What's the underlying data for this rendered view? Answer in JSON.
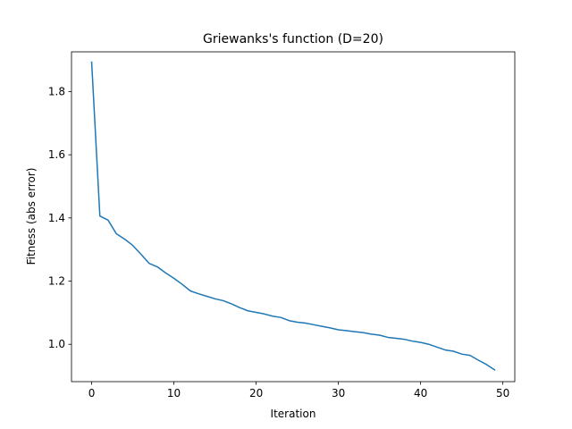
{
  "chart_data": {
    "type": "line",
    "title": "Griewanks's function (D=20)",
    "xlabel": "Iteration",
    "ylabel": "Fitness (abs error)",
    "xlim": [
      -2.45,
      51.45
    ],
    "ylim": [
      0.8818,
      1.9258
    ],
    "xticks": [
      0,
      10,
      20,
      30,
      40,
      50
    ],
    "yticks": [
      1.0,
      1.2,
      1.4,
      1.6,
      1.8
    ],
    "xtick_labels": [
      "0",
      "10",
      "20",
      "30",
      "40",
      "50"
    ],
    "ytick_labels": [
      "1.0",
      "1.2",
      "1.4",
      "1.6",
      "1.8"
    ],
    "grid": false,
    "legend": null,
    "color": "#1f77b4",
    "series": [
      {
        "x": [
          0,
          1,
          2,
          3,
          4,
          5,
          6,
          7,
          8,
          9,
          10,
          11,
          12,
          13,
          14,
          15,
          16,
          17,
          18,
          19,
          20,
          21,
          22,
          23,
          24,
          25,
          26,
          27,
          28,
          29,
          30,
          31,
          32,
          33,
          34,
          35,
          36,
          37,
          38,
          39,
          40,
          41,
          42,
          43,
          44,
          45,
          46,
          47,
          48,
          49
        ],
        "y": [
          1.893,
          1.406,
          1.393,
          1.35,
          1.333,
          1.313,
          1.285,
          1.256,
          1.245,
          1.226,
          1.209,
          1.19,
          1.169,
          1.16,
          1.152,
          1.144,
          1.138,
          1.128,
          1.116,
          1.106,
          1.101,
          1.096,
          1.089,
          1.085,
          1.075,
          1.07,
          1.067,
          1.062,
          1.057,
          1.052,
          1.046,
          1.043,
          1.04,
          1.037,
          1.032,
          1.029,
          1.022,
          1.019,
          1.016,
          1.01,
          1.006,
          1.0,
          0.991,
          0.982,
          0.978,
          0.969,
          0.965,
          0.95,
          0.936,
          0.919
        ]
      }
    ]
  }
}
